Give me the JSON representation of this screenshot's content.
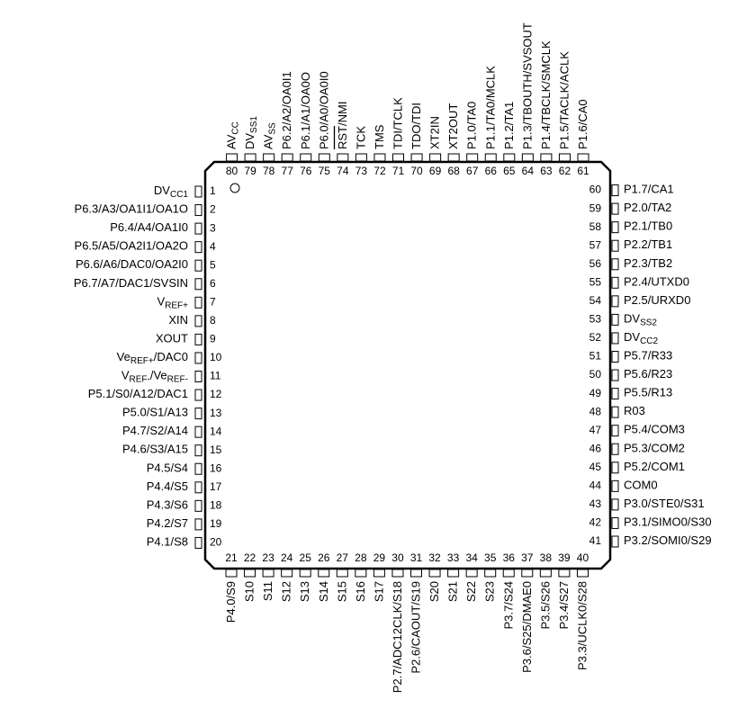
{
  "pins": {
    "left": [
      {
        "number": 1,
        "label": [
          "DV",
          {
            "sub": "CC1"
          }
        ]
      },
      {
        "number": 2,
        "label": [
          "P6.3/A3/OA1I1/OA1O"
        ]
      },
      {
        "number": 3,
        "label": [
          "P6.4/A4/OA1I0"
        ]
      },
      {
        "number": 4,
        "label": [
          "P6.5/A5/OA2I1/OA2O"
        ]
      },
      {
        "number": 5,
        "label": [
          "P6.6/A6/DAC0/OA2I0"
        ]
      },
      {
        "number": 6,
        "label": [
          "P6.7/A7/DAC1/SVSIN"
        ]
      },
      {
        "number": 7,
        "label": [
          "V",
          {
            "sub": "REF+"
          }
        ]
      },
      {
        "number": 8,
        "label": [
          "XIN"
        ]
      },
      {
        "number": 9,
        "label": [
          "XOUT"
        ]
      },
      {
        "number": 10,
        "label": [
          "Ve",
          {
            "sub": "REF+"
          },
          "/DAC0"
        ]
      },
      {
        "number": 11,
        "label": [
          "V",
          {
            "sub": "REF-"
          },
          "/Ve",
          {
            "sub": "REF-"
          }
        ]
      },
      {
        "number": 12,
        "label": [
          "P5.1/S0/A12/DAC1"
        ]
      },
      {
        "number": 13,
        "label": [
          "P5.0/S1/A13"
        ]
      },
      {
        "number": 14,
        "label": [
          "P4.7/S2/A14"
        ]
      },
      {
        "number": 15,
        "label": [
          "P4.6/S3/A15"
        ]
      },
      {
        "number": 16,
        "label": [
          "P4.5/S4"
        ]
      },
      {
        "number": 17,
        "label": [
          "P4.4/S5"
        ]
      },
      {
        "number": 18,
        "label": [
          "P4.3/S6"
        ]
      },
      {
        "number": 19,
        "label": [
          "P4.2/S7"
        ]
      },
      {
        "number": 20,
        "label": [
          "P4.1/S8"
        ]
      }
    ],
    "bottom": [
      {
        "number": 21,
        "label": [
          "P4.0/S9"
        ]
      },
      {
        "number": 22,
        "label": [
          "S10"
        ]
      },
      {
        "number": 23,
        "label": [
          "S11"
        ]
      },
      {
        "number": 24,
        "label": [
          "S12"
        ]
      },
      {
        "number": 25,
        "label": [
          "S13"
        ]
      },
      {
        "number": 26,
        "label": [
          "S14"
        ]
      },
      {
        "number": 27,
        "label": [
          "S15"
        ]
      },
      {
        "number": 28,
        "label": [
          "S16"
        ]
      },
      {
        "number": 29,
        "label": [
          "S17"
        ]
      },
      {
        "number": 30,
        "label": [
          "P2.7/ADC12CLK/S18"
        ]
      },
      {
        "number": 31,
        "label": [
          "P2.6/CAOUT/S19"
        ]
      },
      {
        "number": 32,
        "label": [
          "S20"
        ]
      },
      {
        "number": 33,
        "label": [
          "S21"
        ]
      },
      {
        "number": 34,
        "label": [
          "S22"
        ]
      },
      {
        "number": 35,
        "label": [
          "S23"
        ]
      },
      {
        "number": 36,
        "label": [
          "P3.7/S24"
        ]
      },
      {
        "number": 37,
        "label": [
          "P3.6/S25/DMAE0"
        ]
      },
      {
        "number": 38,
        "label": [
          "P3.5/S26"
        ]
      },
      {
        "number": 39,
        "label": [
          "P3.4/S27"
        ]
      },
      {
        "number": 40,
        "label": [
          "P3.3/UCLK0/S28"
        ]
      }
    ],
    "right": [
      {
        "number": 41,
        "label": [
          "P3.2/SOMI0/S29"
        ]
      },
      {
        "number": 42,
        "label": [
          "P3.1/SIMO0/S30"
        ]
      },
      {
        "number": 43,
        "label": [
          "P3.0/STE0/S31"
        ]
      },
      {
        "number": 44,
        "label": [
          "COM0"
        ]
      },
      {
        "number": 45,
        "label": [
          "P5.2/COM1"
        ]
      },
      {
        "number": 46,
        "label": [
          "P5.3/COM2"
        ]
      },
      {
        "number": 47,
        "label": [
          "P5.4/COM3"
        ]
      },
      {
        "number": 48,
        "label": [
          "R03"
        ]
      },
      {
        "number": 49,
        "label": [
          "P5.5/R13"
        ]
      },
      {
        "number": 50,
        "label": [
          "P5.6/R23"
        ]
      },
      {
        "number": 51,
        "label": [
          "P5.7/R33"
        ]
      },
      {
        "number": 52,
        "label": [
          "DV",
          {
            "sub": "CC2"
          }
        ]
      },
      {
        "number": 53,
        "label": [
          "DV",
          {
            "sub": "SS2"
          }
        ]
      },
      {
        "number": 54,
        "label": [
          "P2.5/URXD0"
        ]
      },
      {
        "number": 55,
        "label": [
          "P2.4/UTXD0"
        ]
      },
      {
        "number": 56,
        "label": [
          "P2.3/TB2"
        ]
      },
      {
        "number": 57,
        "label": [
          "P2.2/TB1"
        ]
      },
      {
        "number": 58,
        "label": [
          "P2.1/TB0"
        ]
      },
      {
        "number": 59,
        "label": [
          "P2.0/TA2"
        ]
      },
      {
        "number": 60,
        "label": [
          "P1.7/CA1"
        ]
      }
    ],
    "top": [
      {
        "number": 61,
        "label": [
          "P1.6/CA0"
        ]
      },
      {
        "number": 62,
        "label": [
          "P1.5/TACLK/ACLK"
        ]
      },
      {
        "number": 63,
        "label": [
          "P1.4/TBCLK/SMCLK"
        ]
      },
      {
        "number": 64,
        "label": [
          "P1.3/TBOUTH/SVSOUT"
        ]
      },
      {
        "number": 65,
        "label": [
          "P1.2/TA1"
        ]
      },
      {
        "number": 66,
        "label": [
          "P1.1/TA0/MCLK"
        ]
      },
      {
        "number": 67,
        "label": [
          "P1.0/TA0"
        ]
      },
      {
        "number": 68,
        "label": [
          "XT2OUT"
        ]
      },
      {
        "number": 69,
        "label": [
          "XT2IN"
        ]
      },
      {
        "number": 70,
        "label": [
          "TDO/TDI"
        ]
      },
      {
        "number": 71,
        "label": [
          "TDI/TCLK"
        ]
      },
      {
        "number": 72,
        "label": [
          "TMS"
        ]
      },
      {
        "number": 73,
        "label": [
          "TCK"
        ]
      },
      {
        "number": 74,
        "label": [
          {
            "over": "RST"
          },
          "/NMI"
        ]
      },
      {
        "number": 75,
        "label": [
          "P6.0/A0/OA0I0"
        ]
      },
      {
        "number": 76,
        "label": [
          "P6.1/A1/OA0O"
        ]
      },
      {
        "number": 77,
        "label": [
          "P6.2/A2/OA0I1"
        ]
      },
      {
        "number": 78,
        "label": [
          "AV",
          {
            "sub": "SS"
          }
        ]
      },
      {
        "number": 79,
        "label": [
          "DV",
          {
            "sub": "SS1"
          }
        ]
      },
      {
        "number": 80,
        "label": [
          "AV",
          {
            "sub": "CC"
          }
        ]
      }
    ]
  }
}
